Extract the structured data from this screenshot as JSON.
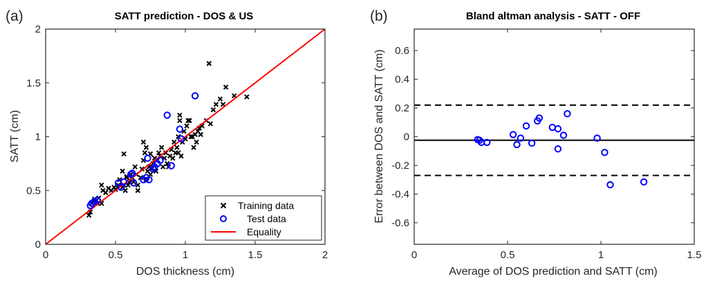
{
  "chart_data": [
    {
      "panel_label": "(a)",
      "type": "scatter",
      "title": "SATT prediction - DOS & US",
      "xlabel": "DOS thickness (cm)",
      "ylabel": "SATT (cm)",
      "xlim": [
        0,
        2
      ],
      "ylim": [
        0,
        2
      ],
      "xticks": [
        0,
        0.5,
        1,
        1.5,
        2
      ],
      "xtick_labels": [
        "0",
        "0.5",
        "1",
        "1.5",
        "2"
      ],
      "yticks": [
        0,
        0.5,
        1,
        1.5,
        2
      ],
      "ytick_labels": [
        "0",
        "0.5",
        "1",
        "1.5",
        "2"
      ],
      "grid": false,
      "legend": {
        "placement": "bottom-right",
        "entries": [
          "Training data",
          "Test data",
          "Equality"
        ]
      },
      "colors": {
        "training": "#000000",
        "test": "#0000ff",
        "equality": "#ff0000"
      },
      "series": [
        {
          "name": "Training data",
          "marker": "x",
          "points": [
            [
              0.31,
              0.27
            ],
            [
              0.32,
              0.3
            ],
            [
              0.33,
              0.38
            ],
            [
              0.35,
              0.42
            ],
            [
              0.37,
              0.38
            ],
            [
              0.38,
              0.43
            ],
            [
              0.4,
              0.38
            ],
            [
              0.41,
              0.5
            ],
            [
              0.4,
              0.55
            ],
            [
              0.43,
              0.48
            ],
            [
              0.45,
              0.52
            ],
            [
              0.47,
              0.5
            ],
            [
              0.49,
              0.53
            ],
            [
              0.5,
              0.51
            ],
            [
              0.52,
              0.55
            ],
            [
              0.53,
              0.6
            ],
            [
              0.55,
              0.53
            ],
            [
              0.56,
              0.55
            ],
            [
              0.57,
              0.5
            ],
            [
              0.58,
              0.62
            ],
            [
              0.59,
              0.55
            ],
            [
              0.6,
              0.58
            ],
            [
              0.61,
              0.65
            ],
            [
              0.62,
              0.62
            ],
            [
              0.63,
              0.58
            ],
            [
              0.64,
              0.72
            ],
            [
              0.65,
              0.65
            ],
            [
              0.66,
              0.55
            ],
            [
              0.66,
              0.5
            ],
            [
              0.68,
              0.62
            ],
            [
              0.69,
              0.7
            ],
            [
              0.7,
              0.78
            ],
            [
              0.71,
              0.85
            ],
            [
              0.72,
              0.9
            ],
            [
              0.72,
              0.6
            ],
            [
              0.73,
              0.68
            ],
            [
              0.74,
              0.72
            ],
            [
              0.75,
              0.65
            ],
            [
              0.76,
              0.7
            ],
            [
              0.77,
              0.75
            ],
            [
              0.78,
              0.8
            ],
            [
              0.79,
              0.68
            ],
            [
              0.8,
              0.78
            ],
            [
              0.81,
              0.85
            ],
            [
              0.82,
              0.82
            ],
            [
              0.83,
              0.9
            ],
            [
              0.84,
              0.72
            ],
            [
              0.85,
              0.8
            ],
            [
              0.86,
              0.85
            ],
            [
              0.87,
              0.75
            ],
            [
              0.88,
              0.72
            ],
            [
              0.89,
              0.82
            ],
            [
              0.9,
              0.88
            ],
            [
              0.91,
              0.8
            ],
            [
              0.92,
              0.95
            ],
            [
              0.93,
              0.85
            ],
            [
              0.94,
              0.9
            ],
            [
              0.95,
              1.0
            ],
            [
              0.95,
              0.85
            ],
            [
              0.96,
              1.2
            ],
            [
              0.96,
              1.15
            ],
            [
              0.97,
              0.82
            ],
            [
              0.98,
              0.95
            ],
            [
              0.99,
              1.05
            ],
            [
              1.0,
              0.98
            ],
            [
              1.01,
              1.1
            ],
            [
              1.02,
              1.15
            ],
            [
              1.03,
              1.15
            ],
            [
              1.04,
              1.0
            ],
            [
              1.05,
              1.0
            ],
            [
              1.06,
              0.9
            ],
            [
              1.07,
              1.02
            ],
            [
              1.08,
              0.95
            ],
            [
              1.09,
              1.05
            ],
            [
              1.1,
              1.08
            ],
            [
              1.11,
              1.02
            ],
            [
              1.12,
              1.1
            ],
            [
              1.15,
              1.15
            ],
            [
              1.17,
              1.68
            ],
            [
              1.18,
              1.12
            ],
            [
              1.2,
              1.25
            ],
            [
              1.22,
              1.3
            ],
            [
              1.25,
              1.35
            ],
            [
              1.27,
              1.3
            ],
            [
              1.29,
              1.46
            ],
            [
              1.35,
              1.38
            ],
            [
              1.44,
              1.37
            ],
            [
              0.56,
              0.84
            ],
            [
              0.75,
              0.84
            ],
            [
              0.55,
              0.68
            ],
            [
              0.7,
              0.95
            ],
            [
              0.58,
              0.63
            ]
          ]
        },
        {
          "name": "Test data",
          "marker": "o",
          "points": [
            [
              0.32,
              0.36
            ],
            [
              0.33,
              0.38
            ],
            [
              0.35,
              0.4
            ],
            [
              0.37,
              0.41
            ],
            [
              0.52,
              0.57
            ],
            [
              0.54,
              0.53
            ],
            [
              0.56,
              0.58
            ],
            [
              0.61,
              0.65
            ],
            [
              0.62,
              0.66
            ],
            [
              0.63,
              0.57
            ],
            [
              0.7,
              0.6
            ],
            [
              0.72,
              0.62
            ],
            [
              0.73,
              0.8
            ],
            [
              0.74,
              0.6
            ],
            [
              0.77,
              0.7
            ],
            [
              0.78,
              0.72
            ],
            [
              0.8,
              0.75
            ],
            [
              0.82,
              0.78
            ],
            [
              0.87,
              1.2
            ],
            [
              0.9,
              0.73
            ],
            [
              0.96,
              1.07
            ],
            [
              0.97,
              0.98
            ],
            [
              1.07,
              1.38
            ]
          ]
        },
        {
          "name": "Equality",
          "marker": "line",
          "points": [
            [
              0,
              0
            ],
            [
              2,
              2
            ]
          ]
        }
      ]
    },
    {
      "panel_label": "(b)",
      "type": "scatter",
      "title": "Bland altman analysis - SATT - OFF",
      "xlabel": "Average of DOS prediction and SATT (cm)",
      "ylabel": "Error between DOS and SATT (cm)",
      "xlim": [
        0,
        1.5
      ],
      "ylim": [
        -0.75,
        0.75
      ],
      "xticks": [
        0,
        0.5,
        1,
        1.5
      ],
      "xtick_labels": [
        "0",
        "0.5",
        "1",
        "1.5"
      ],
      "yticks": [
        -0.6,
        -0.4,
        -0.2,
        0,
        0.2,
        0.4,
        0.6
      ],
      "ytick_labels": [
        "-0.6",
        "-0.4",
        "-0.2",
        "0",
        "0.2",
        "0.4",
        "0.6"
      ],
      "grid": false,
      "colors": {
        "points": "#0000ff",
        "lines": "#000000"
      },
      "mean_line": -0.025,
      "limits_of_agreement": [
        -0.27,
        0.22
      ],
      "series": [
        {
          "marker": "o",
          "points": [
            [
              0.34,
              -0.02
            ],
            [
              0.35,
              -0.025
            ],
            [
              0.36,
              -0.04
            ],
            [
              0.39,
              -0.04
            ],
            [
              0.53,
              0.015
            ],
            [
              0.55,
              -0.055
            ],
            [
              0.57,
              -0.01
            ],
            [
              0.6,
              0.075
            ],
            [
              0.63,
              -0.045
            ],
            [
              0.66,
              0.11
            ],
            [
              0.67,
              0.13
            ],
            [
              0.74,
              0.065
            ],
            [
              0.77,
              0.055
            ],
            [
              0.77,
              -0.085
            ],
            [
              0.8,
              0.01
            ],
            [
              0.82,
              0.16
            ],
            [
              0.98,
              -0.01
            ],
            [
              1.02,
              -0.11
            ],
            [
              1.05,
              -0.335
            ],
            [
              1.23,
              -0.315
            ]
          ]
        }
      ]
    }
  ]
}
